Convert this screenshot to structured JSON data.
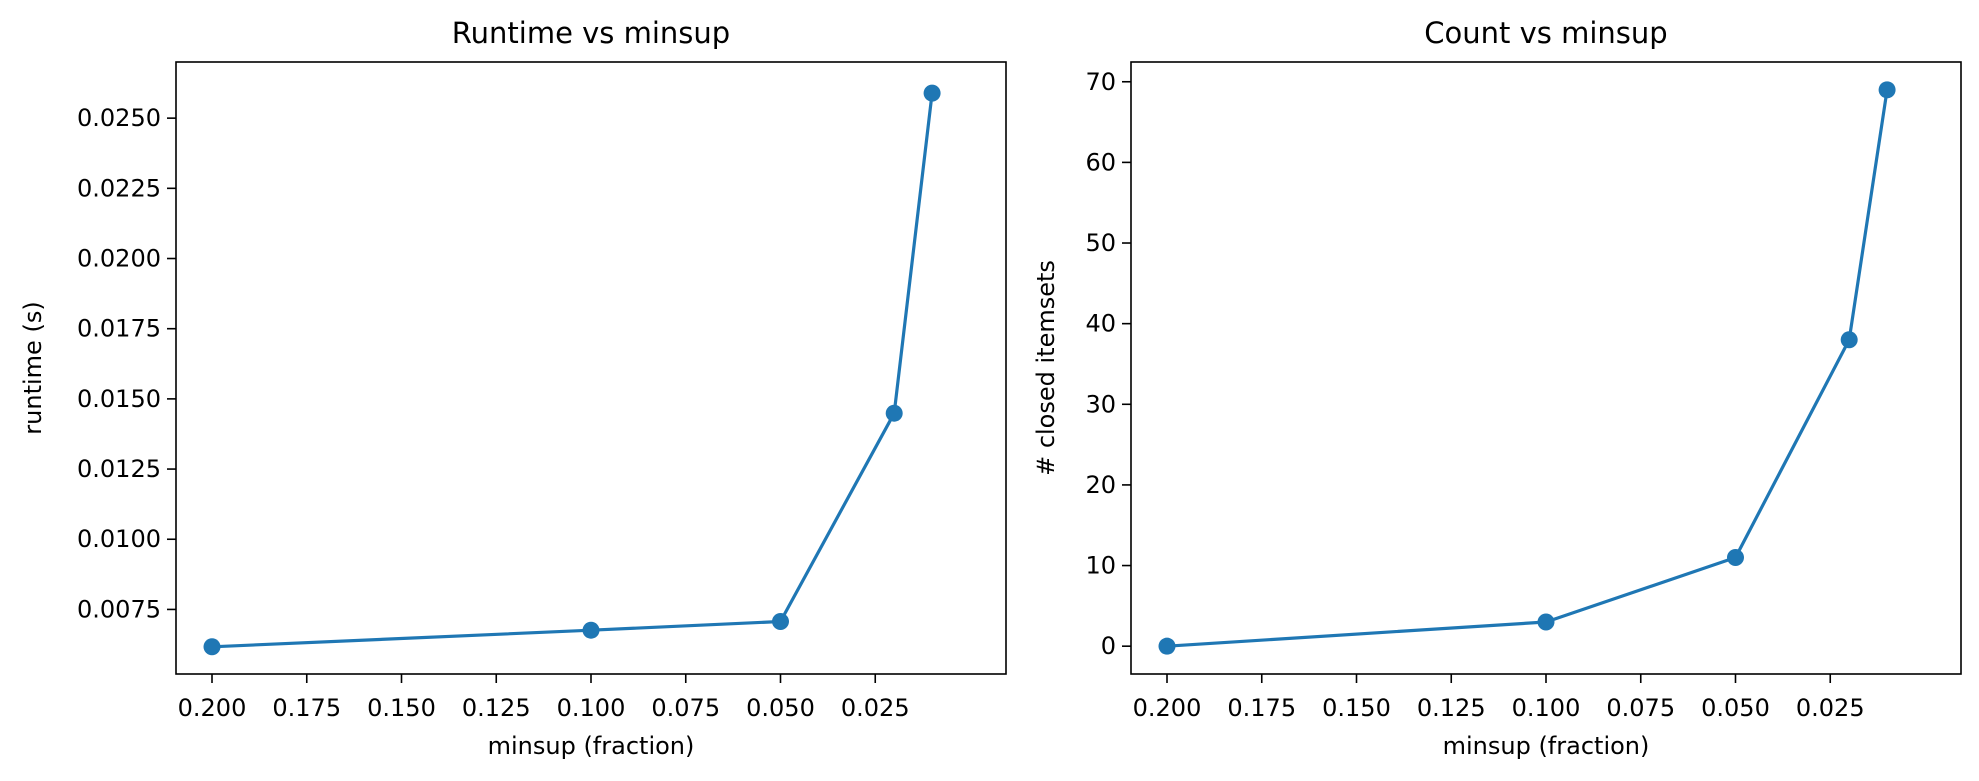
{
  "chart_data": [
    {
      "type": "line",
      "title": "Runtime vs minsup",
      "xlabel": "minsup (fraction)",
      "ylabel": "runtime (s)",
      "x_inverted": true,
      "xlim": [
        0.2095,
        -0.0095
      ],
      "ylim": [
        0.0052,
        0.027
      ],
      "xticks": [
        0.2,
        0.175,
        0.15,
        0.125,
        0.1,
        0.075,
        0.05,
        0.025
      ],
      "xtick_labels": [
        "0.200",
        "0.175",
        "0.150",
        "0.125",
        "0.100",
        "0.075",
        "0.050",
        "0.025"
      ],
      "yticks": [
        0.0075,
        0.01,
        0.0125,
        0.015,
        0.0175,
        0.02,
        0.0225,
        0.025
      ],
      "ytick_labels": [
        "0.0075",
        "0.0100",
        "0.0125",
        "0.0150",
        "0.0175",
        "0.0200",
        "0.0225",
        "0.0250"
      ],
      "grid": false,
      "series": [
        {
          "color": "#1f77b4",
          "marker": "circle",
          "x": [
            0.2,
            0.1,
            0.05,
            0.02,
            0.01
          ],
          "y": [
            0.00617,
            0.00676,
            0.00707,
            0.01449,
            0.02589
          ]
        }
      ]
    },
    {
      "type": "line",
      "title": "Count vs minsup",
      "xlabel": "minsup (fraction)",
      "ylabel": "# closed itemsets",
      "x_inverted": true,
      "xlim": [
        0.2095,
        -0.0095
      ],
      "ylim": [
        -3.45,
        72.45
      ],
      "xticks": [
        0.2,
        0.175,
        0.15,
        0.125,
        0.1,
        0.075,
        0.05,
        0.025
      ],
      "xtick_labels": [
        "0.200",
        "0.175",
        "0.150",
        "0.125",
        "0.100",
        "0.075",
        "0.050",
        "0.025"
      ],
      "yticks": [
        0,
        10,
        20,
        30,
        40,
        50,
        60,
        70
      ],
      "ytick_labels": [
        "0",
        "10",
        "20",
        "30",
        "40",
        "50",
        "60",
        "70"
      ],
      "grid": false,
      "series": [
        {
          "color": "#1f77b4",
          "marker": "circle",
          "x": [
            0.2,
            0.1,
            0.05,
            0.02,
            0.01
          ],
          "y": [
            0,
            3,
            11,
            38,
            69
          ]
        }
      ]
    }
  ]
}
